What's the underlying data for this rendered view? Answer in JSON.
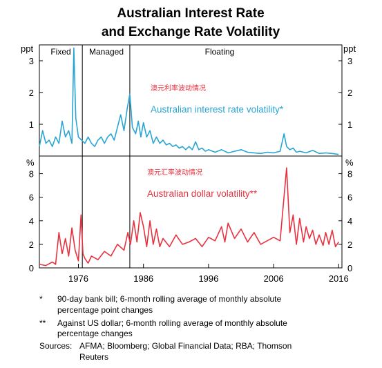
{
  "chart_data": {
    "type": "line",
    "title_line1": "Australian Interest Rate",
    "title_line2": "and Exchange Rate Volatility",
    "regimes": [
      "Fixed",
      "Managed",
      "Floating"
    ],
    "regime_boundaries": [
      1976.6,
      1983.9
    ],
    "x_ticks": [
      "1976",
      "1986",
      "1996",
      "2006",
      "2016"
    ],
    "xlim": [
      1970,
      2016.5
    ],
    "panels": [
      {
        "unit_left": "ppt",
        "unit_right": "ppt",
        "ylim": [
          0,
          3.5
        ],
        "yticks": [
          1,
          2,
          3
        ],
        "cn_label": "澳元利率波动情况",
        "series_label": "Australian interest rate volatility*",
        "color": "#2aa5d3",
        "series": {
          "x": [
            1970.0,
            1970.5,
            1971.0,
            1971.5,
            1972.0,
            1972.5,
            1973.0,
            1973.5,
            1974.0,
            1974.5,
            1975.0,
            1975.3,
            1975.6,
            1976.0,
            1976.5,
            1977.0,
            1977.5,
            1978.0,
            1978.5,
            1979.0,
            1979.5,
            1980.0,
            1980.5,
            1981.0,
            1981.5,
            1982.0,
            1982.5,
            1983.0,
            1983.5,
            1983.9,
            1984.3,
            1984.8,
            1985.2,
            1985.6,
            1986.0,
            1986.5,
            1987.0,
            1987.5,
            1988.0,
            1988.5,
            1989.0,
            1989.5,
            1990.0,
            1990.5,
            1991.0,
            1991.5,
            1992.0,
            1992.5,
            1993.0,
            1993.5,
            1994.0,
            1994.5,
            1995.0,
            1995.5,
            1996.0,
            1997.0,
            1998.0,
            1999.0,
            2000.0,
            2001.0,
            2002.0,
            2003.0,
            2004.0,
            2005.0,
            2006.0,
            2007.0,
            2007.6,
            2008.0,
            2008.5,
            2009.0,
            2009.5,
            2010.0,
            2011.0,
            2012.0,
            2013.0,
            2014.0,
            2015.0,
            2016.0
          ],
          "y": [
            0.3,
            0.8,
            0.4,
            0.5,
            0.3,
            0.6,
            0.4,
            1.1,
            0.6,
            0.8,
            0.4,
            3.4,
            1.2,
            0.6,
            0.5,
            0.4,
            0.6,
            0.4,
            0.3,
            0.5,
            0.6,
            0.4,
            0.6,
            0.7,
            0.5,
            0.9,
            1.3,
            0.8,
            1.5,
            1.95,
            0.9,
            0.7,
            1.1,
            0.6,
            1.05,
            0.6,
            0.8,
            0.4,
            0.6,
            0.4,
            0.5,
            0.35,
            0.4,
            0.3,
            0.35,
            0.25,
            0.3,
            0.2,
            0.3,
            0.2,
            0.45,
            0.2,
            0.25,
            0.15,
            0.2,
            0.12,
            0.2,
            0.1,
            0.15,
            0.2,
            0.12,
            0.1,
            0.08,
            0.12,
            0.1,
            0.15,
            0.7,
            0.3,
            0.2,
            0.25,
            0.12,
            0.15,
            0.1,
            0.18,
            0.08,
            0.1,
            0.08,
            0.05
          ]
        }
      },
      {
        "unit_left": "%",
        "unit_right": "%",
        "ylim": [
          0,
          9.5
        ],
        "yticks": [
          0,
          2,
          4,
          6,
          8
        ],
        "cn_label": "澳元汇率波动情况",
        "series_label": "Australian dollar volatility**",
        "color": "#e8313f",
        "series": {
          "x": [
            1970.0,
            1971.0,
            1972.0,
            1972.5,
            1973.0,
            1973.5,
            1974.0,
            1974.5,
            1975.0,
            1975.5,
            1976.0,
            1976.4,
            1976.7,
            1977.0,
            1977.5,
            1978.0,
            1979.0,
            1980.0,
            1981.0,
            1982.0,
            1983.0,
            1983.6,
            1984.0,
            1984.5,
            1985.0,
            1985.5,
            1986.0,
            1986.5,
            1987.0,
            1987.5,
            1988.0,
            1988.5,
            1989.0,
            1990.0,
            1991.0,
            1992.0,
            1993.0,
            1994.0,
            1995.0,
            1996.0,
            1997.0,
            1998.0,
            1998.5,
            1999.0,
            2000.0,
            2001.0,
            2002.0,
            2003.0,
            2004.0,
            2005.0,
            2006.0,
            2007.0,
            2008.0,
            2008.5,
            2009.0,
            2009.5,
            2010.0,
            2010.6,
            2011.0,
            2011.5,
            2012.0,
            2012.5,
            2013.0,
            2013.6,
            2014.0,
            2014.5,
            2015.0,
            2015.5,
            2016.0
          ],
          "y": [
            0.3,
            0.2,
            0.5,
            0.3,
            3.0,
            1.2,
            2.5,
            1.0,
            3.4,
            1.5,
            0.6,
            4.5,
            1.2,
            0.8,
            0.4,
            1.0,
            0.7,
            1.4,
            1.0,
            2.0,
            1.5,
            3.0,
            2.0,
            4.0,
            2.2,
            4.7,
            3.5,
            1.8,
            4.0,
            2.0,
            3.3,
            1.8,
            2.5,
            1.8,
            2.8,
            2.0,
            2.2,
            2.5,
            1.8,
            2.6,
            2.3,
            3.5,
            2.2,
            3.8,
            2.5,
            3.3,
            2.2,
            3.0,
            2.0,
            2.3,
            2.6,
            2.3,
            8.5,
            3.0,
            4.5,
            2.0,
            4.2,
            2.2,
            3.5,
            2.5,
            3.2,
            2.0,
            2.8,
            1.9,
            3.0,
            2.0,
            3.2,
            1.8,
            2.2
          ]
        }
      }
    ],
    "notes": [
      {
        "marker": "*",
        "line1": "90-day bank bill; 6-month rolling average of monthly absolute",
        "line2": "percentage point changes"
      },
      {
        "marker": "**",
        "line1": "Against US dollar; 6-month rolling average of monthly absolute",
        "line2": "percentage changes"
      }
    ],
    "sources_label": "Sources:",
    "sources_line1": "AFMA; Bloomberg; Global Financial Data; RBA; Thomson",
    "sources_line2": "Reuters"
  }
}
